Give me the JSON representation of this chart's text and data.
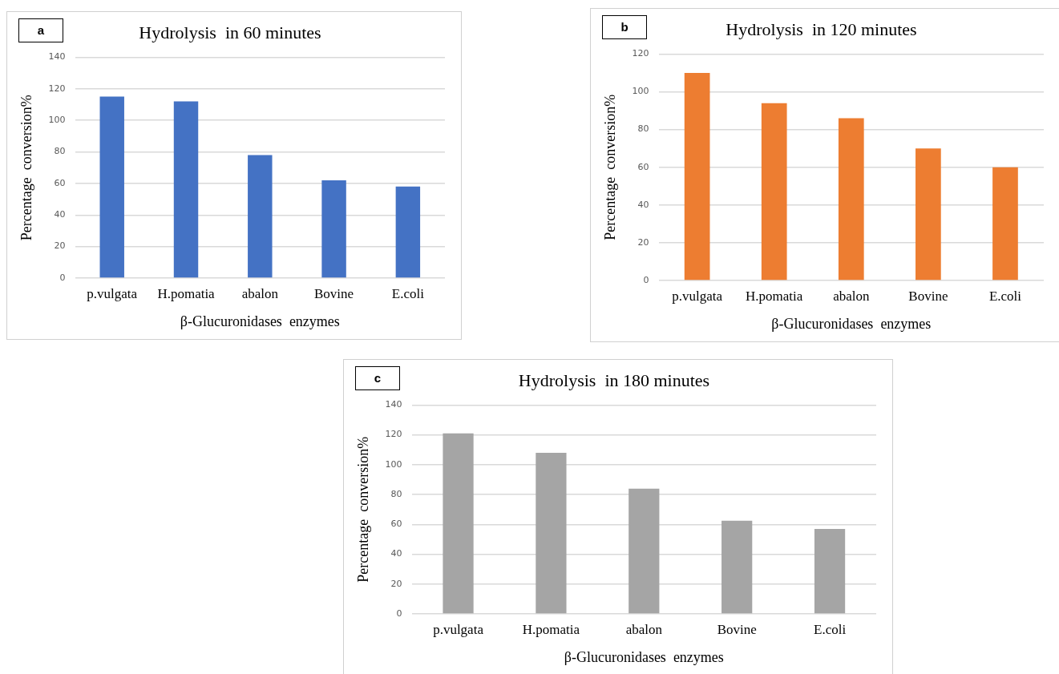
{
  "chart_data": [
    {
      "type": "bar",
      "title": "Hydrolysis  in 60 minutes",
      "xlabel": "β-Glucuronidases  enzymes",
      "ylabel": "Percentage  conversion%",
      "annotations": [
        "a"
      ],
      "categories": [
        "p.vulgata",
        "H.pomatia",
        "abalon",
        "Bovine",
        "E.coli"
      ],
      "values": [
        115,
        112,
        78,
        62,
        58
      ],
      "color": "#4472c4",
      "ylim": [
        0,
        140
      ],
      "yticks": [
        0,
        20,
        40,
        60,
        80,
        100,
        120,
        140
      ],
      "grid": "y",
      "legend": false
    },
    {
      "type": "bar",
      "title": "Hydrolysis  in 120 minutes",
      "xlabel": "β-Glucuronidases  enzymes",
      "ylabel": "Percentage  conversion%",
      "annotations": [
        "b"
      ],
      "categories": [
        "p.vulgata",
        "H.pomatia",
        "abalon",
        "Bovine",
        "E.coli"
      ],
      "values": [
        110,
        94,
        86,
        70,
        60
      ],
      "color": "#ed7d31",
      "ylim": [
        0,
        120
      ],
      "yticks": [
        0,
        20,
        40,
        60,
        80,
        100,
        120
      ],
      "grid": "y",
      "legend": false
    },
    {
      "type": "bar",
      "title": "Hydrolysis  in 180 minutes",
      "xlabel": "β-Glucuronidases  enzymes",
      "ylabel": "Percentage  conversion%",
      "annotations": [
        "c"
      ],
      "categories": [
        "p.vulgata",
        "H.pomatia",
        "abalon",
        "Bovine",
        "E.coli"
      ],
      "values": [
        121,
        108,
        84,
        62.5,
        57
      ],
      "color": "#a5a5a5",
      "ylim": [
        0,
        140
      ],
      "yticks": [
        0,
        20,
        40,
        60,
        80,
        100,
        120,
        140
      ],
      "grid": "y",
      "legend": false
    }
  ]
}
